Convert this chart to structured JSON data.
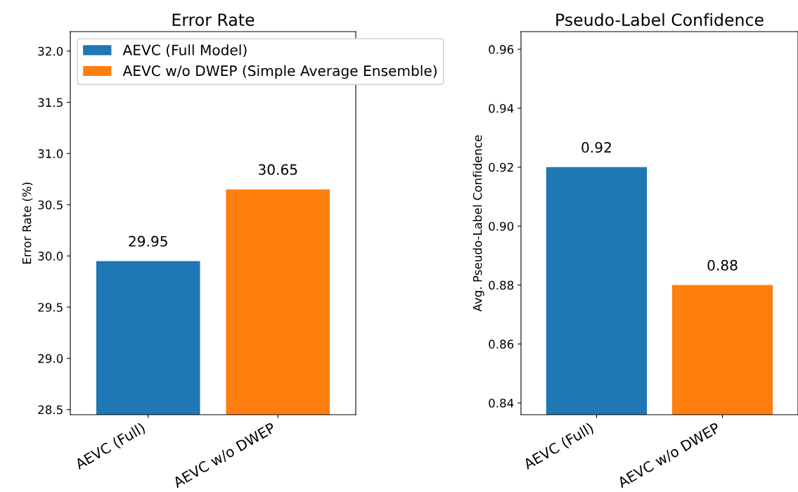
{
  "chart_data": [
    {
      "type": "bar",
      "title": "Error Rate",
      "ylabel": "Error Rate (%)",
      "categories": [
        "AEVC (Full)",
        "AEVC w/o DWEP"
      ],
      "series": [
        {
          "name": "AEVC (Full Model)",
          "color": "#1f77b4",
          "values": [
            29.95,
            null
          ]
        },
        {
          "name": "AEVC w/o DWEP (Simple Average Ensemble)",
          "color": "#ff7f0e",
          "values": [
            null,
            30.65
          ]
        }
      ],
      "ylim": [
        28.45,
        32.19
      ],
      "yticks": [
        28.5,
        {
          "value": 29,
          "label": "29.0"
        },
        29.5,
        {
          "value": 30,
          "label": "30.0"
        },
        30.5,
        {
          "value": 31,
          "label": "31.0"
        },
        31.5,
        {
          "value": 32,
          "label": "32.0"
        }
      ],
      "data_labels": true,
      "legend": "top",
      "grid": false
    },
    {
      "type": "bar",
      "title": "Pseudo-Label Confidence",
      "ylabel": "Avg. Pseudo-Label Confidence",
      "categories": [
        "AEVC (Full)",
        "AEVC w/o DWEP"
      ],
      "series": [
        {
          "color": "#1f77b4",
          "values": [
            0.92,
            null
          ]
        },
        {
          "color": "#ff7f0e",
          "values": [
            null,
            0.88
          ]
        }
      ],
      "ylim": [
        0.836,
        0.966
      ],
      "yticks": [
        0.84,
        0.86,
        0.88,
        {
          "value": 0.9,
          "label": "0.90"
        },
        0.92,
        0.94,
        0.96
      ],
      "data_labels": true,
      "grid": false
    }
  ]
}
